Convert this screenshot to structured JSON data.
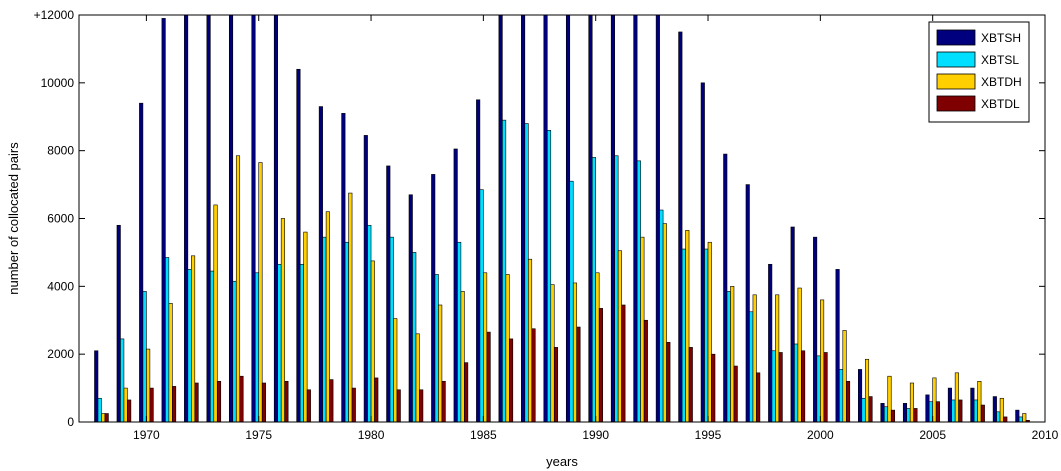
{
  "chart_data": {
    "type": "bar",
    "title": "",
    "xlabel": "years",
    "ylabel": "number of collocated pairs",
    "xlim": [
      1967,
      2010
    ],
    "ylim": [
      0,
      12000
    ],
    "x_ticks": [
      "1970",
      "1975",
      "1980",
      "1985",
      "1990",
      "1995",
      "2000",
      "2005",
      "2010"
    ],
    "y_ticks": [
      "0",
      "2000",
      "4000",
      "6000",
      "8000",
      "10000",
      "+12000"
    ],
    "legend_position": "top-right",
    "grid": false,
    "x": [
      1968,
      1969,
      1970,
      1971,
      1972,
      1973,
      1974,
      1975,
      1976,
      1977,
      1978,
      1979,
      1980,
      1981,
      1982,
      1983,
      1984,
      1985,
      1986,
      1987,
      1988,
      1989,
      1990,
      1991,
      1992,
      1993,
      1994,
      1995,
      1996,
      1997,
      1998,
      1999,
      2000,
      2001,
      2002,
      2003,
      2004,
      2005,
      2006,
      2007,
      2008,
      2009
    ],
    "series": [
      {
        "name": "XBTSH",
        "color": "#00007f",
        "values": [
          2100,
          5800,
          9400,
          11900,
          12000,
          12000,
          12000,
          12000,
          12000,
          10400,
          9300,
          9100,
          8450,
          7550,
          6700,
          7300,
          8050,
          9500,
          12000,
          12000,
          12000,
          12000,
          12000,
          12000,
          12000,
          12000,
          11500,
          10000,
          7900,
          7000,
          4650,
          5750,
          5450,
          4500,
          1550,
          550,
          550,
          800,
          1000,
          1000,
          750,
          350
        ]
      },
      {
        "name": "XBTSL",
        "color": "#00dfff",
        "values": [
          700,
          2450,
          3850,
          4850,
          4500,
          4450,
          4150,
          4400,
          4650,
          4650,
          5450,
          5300,
          5800,
          5450,
          5000,
          4350,
          5300,
          6850,
          8900,
          8800,
          8600,
          7100,
          7800,
          7850,
          7700,
          6250,
          5100,
          5100,
          3850,
          3250,
          2100,
          2300,
          1950,
          1550,
          700,
          450,
          400,
          600,
          650,
          650,
          300,
          150
        ]
      },
      {
        "name": "XBTDH",
        "color": "#ffcf00",
        "values": [
          250,
          1000,
          2150,
          3500,
          4900,
          6400,
          7850,
          7650,
          6000,
          5600,
          6200,
          6750,
          4750,
          3050,
          2600,
          3450,
          3850,
          4400,
          4350,
          4800,
          4050,
          4100,
          4400,
          5050,
          5450,
          5850,
          5650,
          5300,
          4000,
          3750,
          3750,
          3950,
          3600,
          2700,
          1850,
          1350,
          1150,
          1300,
          1450,
          1200,
          700,
          250
        ]
      },
      {
        "name": "XBTDL",
        "color": "#7f0000",
        "values": [
          250,
          650,
          1000,
          1050,
          1150,
          1200,
          1350,
          1150,
          1200,
          950,
          1250,
          1000,
          1300,
          950,
          950,
          1200,
          1750,
          2650,
          2450,
          2750,
          2200,
          2800,
          3350,
          3450,
          3000,
          2350,
          2200,
          2000,
          1650,
          1450,
          2050,
          2100,
          2050,
          1200,
          750,
          350,
          400,
          600,
          650,
          500,
          150,
          50
        ]
      }
    ]
  }
}
